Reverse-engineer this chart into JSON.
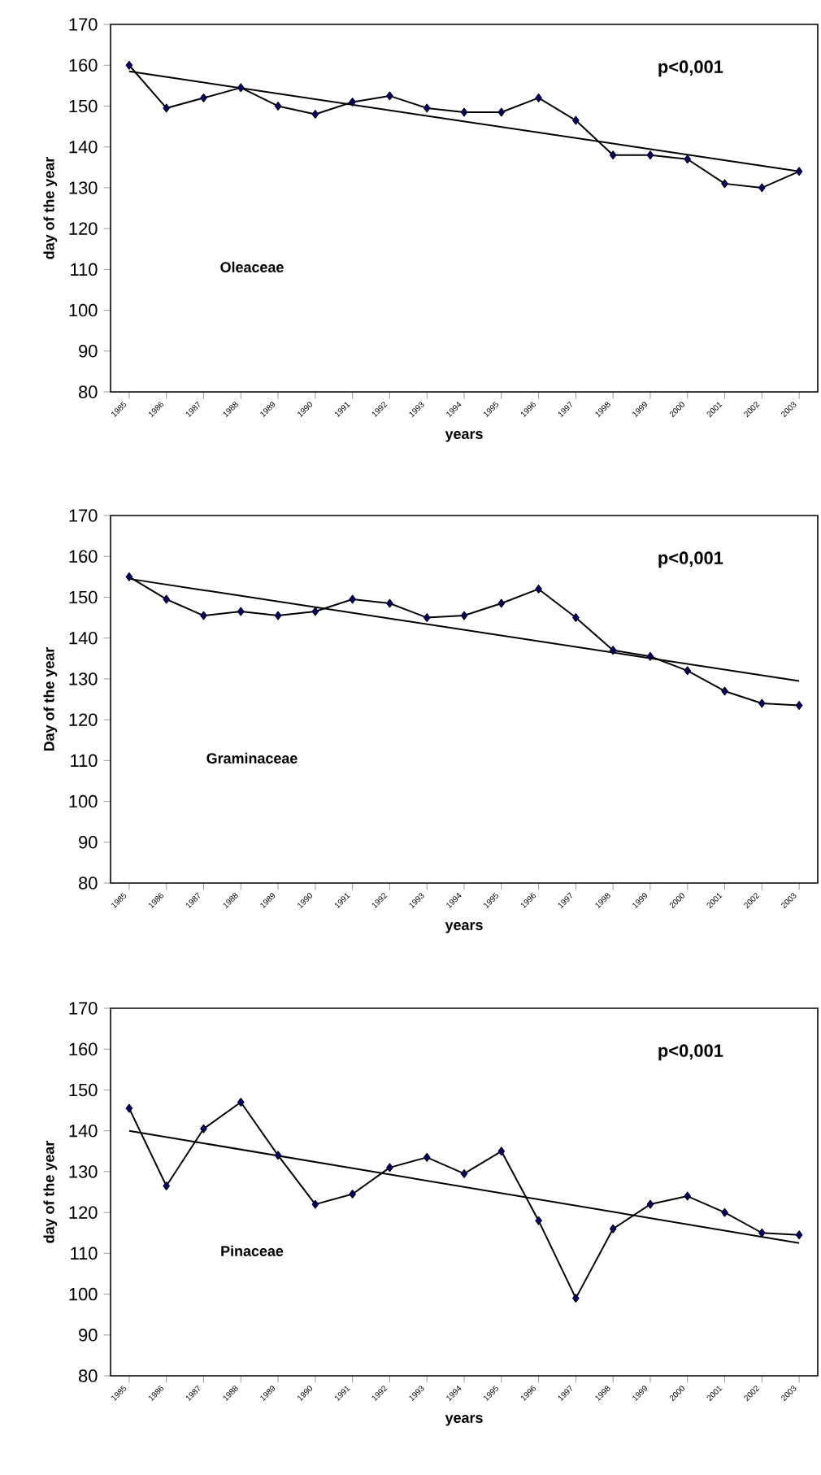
{
  "chart_data": [
    {
      "type": "line",
      "xlabel": "years",
      "ylabel": "day of the year",
      "xlim": [
        1984.5,
        2003.5
      ],
      "ylim": [
        80,
        170
      ],
      "xticks": [
        1985,
        1986,
        1987,
        1988,
        1989,
        1990,
        1991,
        1992,
        1993,
        1994,
        1995,
        1996,
        1997,
        1998,
        1999,
        2000,
        2001,
        2002,
        2003
      ],
      "yticks": [
        80,
        90,
        100,
        110,
        120,
        130,
        140,
        150,
        160,
        170
      ],
      "annotations": [
        "p<0,001",
        "Oleaceae"
      ],
      "series": [
        {
          "x": [
            1985,
            1986,
            1987,
            1988,
            1989,
            1990,
            1991,
            1992,
            1993,
            1994,
            1995,
            1996,
            1997,
            1998,
            1999,
            2000,
            2001,
            2002,
            2003
          ],
          "values": [
            160,
            149.5,
            152,
            154.5,
            150,
            148,
            151,
            152.5,
            149.5,
            148.5,
            148.5,
            152,
            146.5,
            138,
            138,
            137,
            131,
            130,
            134
          ],
          "color": "#000066",
          "marker": "diamond"
        },
        {
          "x": [
            1985,
            2003
          ],
          "values": [
            158.5,
            134
          ],
          "color": "#000000",
          "marker": "none"
        }
      ]
    },
    {
      "type": "line",
      "xlabel": "years",
      "ylabel": "Day of the year",
      "xlim": [
        1984.5,
        2003.5
      ],
      "ylim": [
        80,
        170
      ],
      "xticks": [
        1985,
        1986,
        1987,
        1988,
        1989,
        1990,
        1991,
        1992,
        1993,
        1994,
        1995,
        1996,
        1997,
        1998,
        1999,
        2000,
        2001,
        2002,
        2003
      ],
      "yticks": [
        80,
        90,
        100,
        110,
        120,
        130,
        140,
        150,
        160,
        170
      ],
      "annotations": [
        "p<0,001",
        "Graminaceae"
      ],
      "series": [
        {
          "x": [
            1985,
            1986,
            1987,
            1988,
            1989,
            1990,
            1991,
            1992,
            1993,
            1994,
            1995,
            1996,
            1997,
            1998,
            1999,
            2000,
            2001,
            2002,
            2003
          ],
          "values": [
            155,
            149.5,
            145.5,
            146.5,
            145.5,
            146.5,
            149.5,
            148.5,
            145,
            145.5,
            148.5,
            152,
            145,
            137,
            135.5,
            132,
            127,
            124,
            123.5
          ],
          "color": "#000066",
          "marker": "diamond"
        },
        {
          "x": [
            1985,
            2003
          ],
          "values": [
            154.5,
            129.5
          ],
          "color": "#000000",
          "marker": "none"
        }
      ]
    },
    {
      "type": "line",
      "xlabel": "years",
      "ylabel": "day of the year",
      "xlim": [
        1984.5,
        2003.5
      ],
      "ylim": [
        80,
        170
      ],
      "xticks": [
        1985,
        1986,
        1987,
        1988,
        1989,
        1990,
        1991,
        1992,
        1993,
        1994,
        1995,
        1996,
        1997,
        1998,
        1999,
        2000,
        2001,
        2002,
        2003
      ],
      "yticks": [
        80,
        90,
        100,
        110,
        120,
        130,
        140,
        150,
        160,
        170
      ],
      "annotations": [
        "p<0,001",
        "Pinaceae"
      ],
      "series": [
        {
          "x": [
            1985,
            1986,
            1987,
            1988,
            1989,
            1990,
            1991,
            1992,
            1993,
            1994,
            1995,
            1996,
            1997,
            1998,
            1999,
            2000,
            2001,
            2002,
            2003
          ],
          "values": [
            145.5,
            126.5,
            140.5,
            147,
            134,
            122,
            124.5,
            131,
            133.5,
            129.5,
            135,
            118,
            99,
            116,
            122,
            124,
            120,
            115,
            114.5
          ],
          "color": "#000066",
          "marker": "diamond"
        },
        {
          "x": [
            1985,
            2003
          ],
          "values": [
            140,
            112.5
          ],
          "color": "#000000",
          "marker": "none"
        }
      ]
    }
  ]
}
